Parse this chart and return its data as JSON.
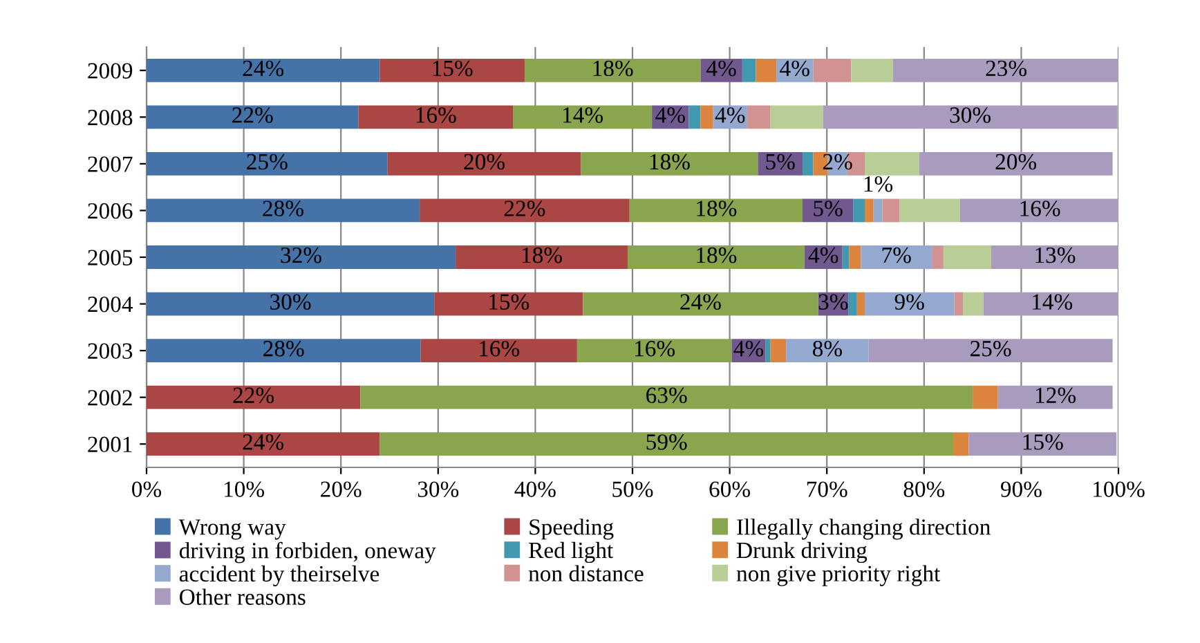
{
  "chart_data": {
    "type": "bar",
    "orientation": "horizontal",
    "stacked": true,
    "categories": [
      "2009",
      "2008",
      "2007",
      "2006",
      "2005",
      "2004",
      "2003",
      "2002",
      "2001"
    ],
    "xlim": [
      0,
      100
    ],
    "xticks": [
      {
        "value": 0,
        "label": "0%"
      },
      {
        "value": 10,
        "label": "10%"
      },
      {
        "value": 20,
        "label": "20%"
      },
      {
        "value": 30,
        "label": "30%"
      },
      {
        "value": 40,
        "label": "40%"
      },
      {
        "value": 50,
        "label": "50%"
      },
      {
        "value": 60,
        "label": "60%"
      },
      {
        "value": 70,
        "label": "70%"
      },
      {
        "value": 80,
        "label": "80%"
      },
      {
        "value": 90,
        "label": "90%"
      },
      {
        "value": 100,
        "label": "100%"
      }
    ],
    "grid": "x",
    "legend": "bottom",
    "series": [
      {
        "name": "Wrong way",
        "color": "#4572a7",
        "values": [
          24,
          21.8,
          24.8,
          28.1,
          31.8,
          29.6,
          28.2,
          null,
          null
        ],
        "value_labels": [
          "24%",
          "22%",
          "25%",
          "28%",
          "32%",
          "30%",
          "28%",
          null,
          null
        ]
      },
      {
        "name": "Speeding",
        "color": "#aa4643",
        "values": [
          14.9,
          15.9,
          19.9,
          21.6,
          17.7,
          15.3,
          16.1,
          22,
          24
        ],
        "value_labels": [
          "15%",
          "16%",
          "20%",
          "22%",
          "18%",
          "15%",
          "16%",
          "22%",
          "24%"
        ]
      },
      {
        "name": "Illegally changing direction",
        "color": "#89a54e",
        "values": [
          18.1,
          14.3,
          18.2,
          17.8,
          18.2,
          24.2,
          15.9,
          63,
          59
        ],
        "value_labels": [
          "18%",
          "14%",
          "18%",
          "18%",
          "18%",
          "24%",
          "16%",
          "63%",
          "59%"
        ]
      },
      {
        "name": "driving in forbiden, oneway",
        "color": "#71588f",
        "values": [
          4.3,
          3.8,
          4.6,
          5.2,
          3.9,
          3.1,
          3.5,
          null,
          null
        ],
        "value_labels": [
          "4%",
          "4%",
          "5%",
          "5%",
          "4%",
          "3%",
          "4%",
          null,
          null
        ]
      },
      {
        "name": "Red light",
        "color": "#4198af",
        "values": [
          1.4,
          1.2,
          1.1,
          1.2,
          0.7,
          0.9,
          0.5,
          null,
          null
        ]
      },
      {
        "name": "Drunk driving",
        "color": "#db843d",
        "values": [
          2.1,
          1.3,
          1.5,
          0.9,
          1.2,
          0.8,
          1.6,
          2.6,
          1.6
        ]
      },
      {
        "name": "accident by theirselve",
        "color": "#93a9cf",
        "values": [
          3.8,
          3.5,
          2,
          0.9,
          7.3,
          9.2,
          8.5,
          null,
          null
        ],
        "value_labels": [
          "4%",
          "4%",
          "2%",
          "1%",
          "7%",
          "9%",
          "8%",
          null,
          null
        ]
      },
      {
        "name": "non distance",
        "color": "#d19392",
        "values": [
          3.9,
          2.4,
          1.8,
          1.8,
          1.2,
          0.9,
          null,
          null,
          null
        ]
      },
      {
        "name": "non give priority right",
        "color": "#b9cd96",
        "values": [
          4.3,
          5.4,
          5.6,
          6.2,
          4.9,
          2.1,
          null,
          null,
          null
        ]
      },
      {
        "name": "Other reasons",
        "color": "#a99bbd",
        "values": [
          23.3,
          30.3,
          19.9,
          16.4,
          13.1,
          14.1,
          25.1,
          11.8,
          15.2
        ],
        "value_labels": [
          "23%",
          "30%",
          "20%",
          "16%",
          "13%",
          "14%",
          "25%",
          "12%",
          "15%"
        ]
      }
    ]
  }
}
